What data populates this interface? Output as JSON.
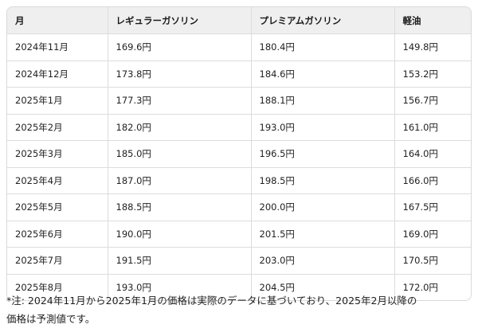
{
  "table": {
    "headers": [
      "月",
      "レギュラーガソリン",
      "プレミアムガソリン",
      "軽油"
    ],
    "rows": [
      [
        "2024年11月",
        "169.6円",
        "180.4円",
        "149.8円"
      ],
      [
        "2024年12月",
        "173.8円",
        "184.6円",
        "153.2円"
      ],
      [
        "2025年1月",
        "177.3円",
        "188.1円",
        "156.7円"
      ],
      [
        "2025年2月",
        "182.0円",
        "193.0円",
        "161.0円"
      ],
      [
        "2025年3月",
        "185.0円",
        "196.5円",
        "164.0円"
      ],
      [
        "2025年4月",
        "187.0円",
        "198.5円",
        "166.0円"
      ],
      [
        "2025年5月",
        "188.5円",
        "200.0円",
        "167.5円"
      ],
      [
        "2025年6月",
        "190.0円",
        "201.5円",
        "169.0円"
      ],
      [
        "2025年7月",
        "191.5円",
        "203.0円",
        "170.5円"
      ],
      [
        "2025年8月",
        "193.0円",
        "204.5円",
        "172.0円"
      ]
    ]
  },
  "note": {
    "line1": "*注: 2024年11月から2025年1月の価格は実際のデータに基づいており、2025年2月以降の",
    "line2": "価格は予測値です。"
  }
}
